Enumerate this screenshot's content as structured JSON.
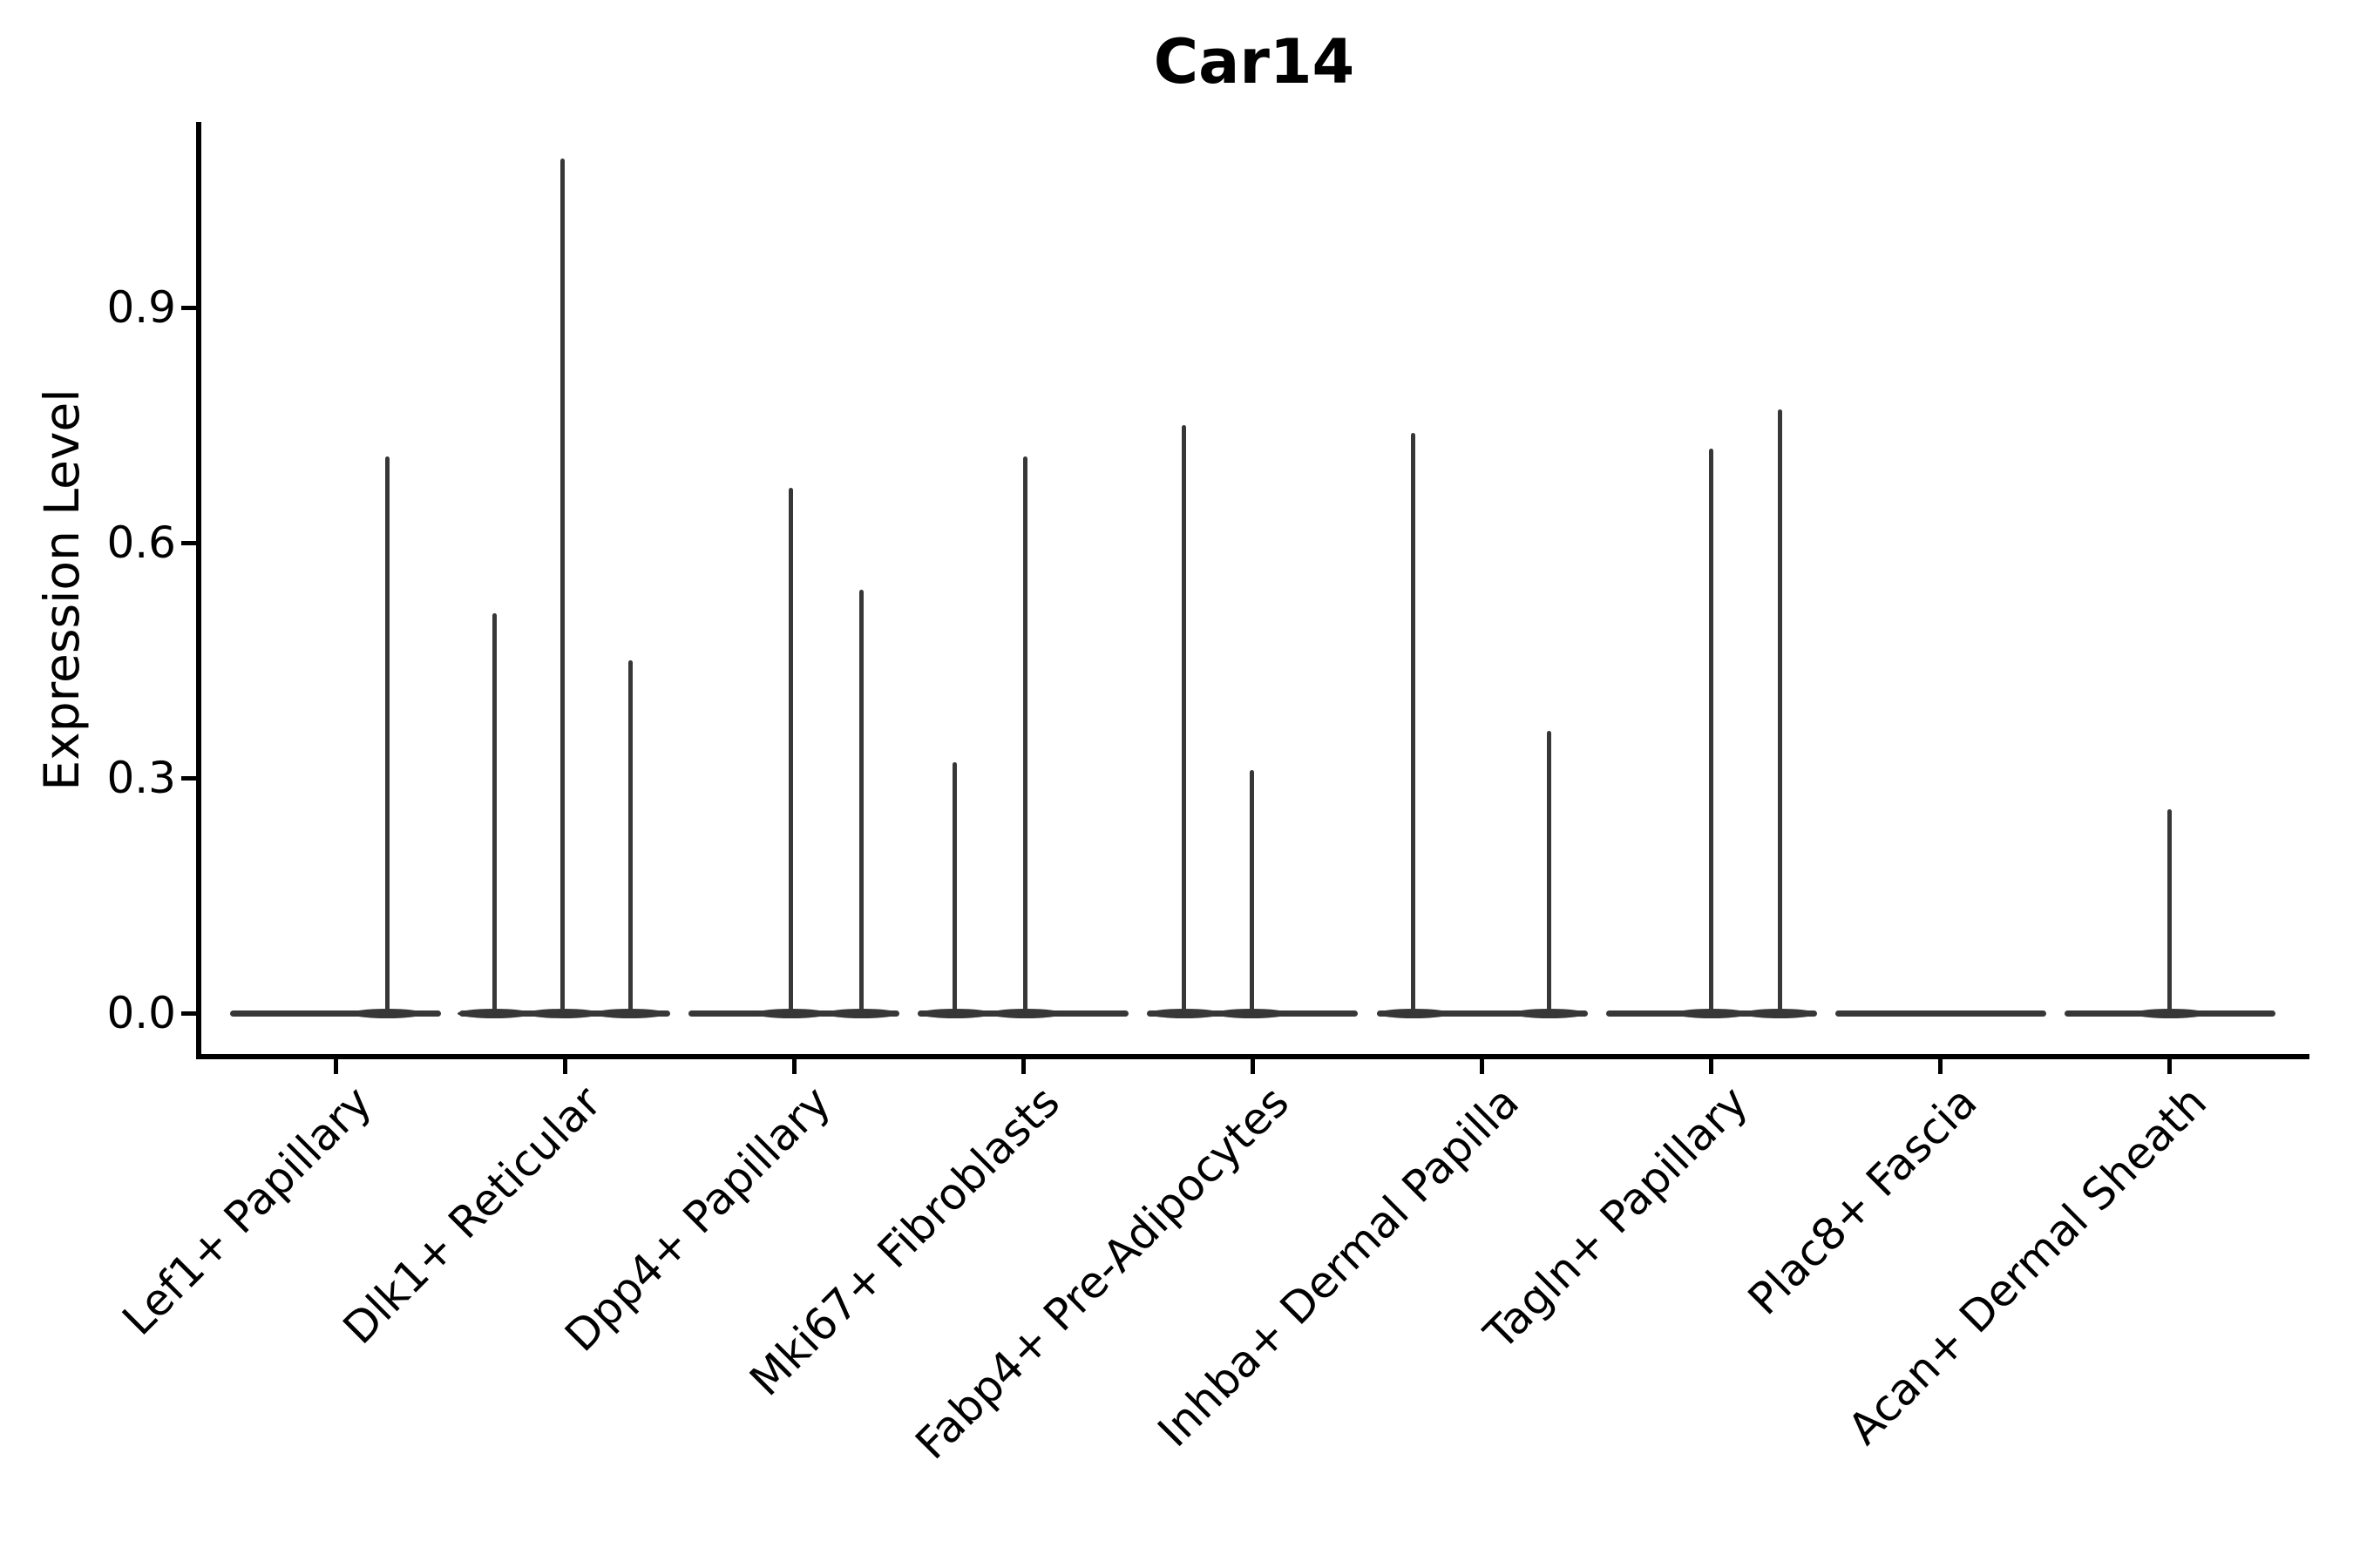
{
  "title": "Car14",
  "y_axis": {
    "label": "Expression Level",
    "tick_labels": [
      "0.0",
      "0.3",
      "0.6",
      "0.9"
    ],
    "tick_values": [
      0.0,
      0.3,
      0.6,
      0.9
    ]
  },
  "colors": {
    "violin": "#373737",
    "axis": "#000000",
    "text": "#000000",
    "background": "#ffffff"
  },
  "chart_data": {
    "type": "violin",
    "title": "Car14",
    "xlabel": "",
    "ylabel": "Expression Level",
    "ylim": [
      -0.055,
      1.137
    ],
    "yticks": [
      0.0,
      0.3,
      0.6,
      0.9
    ],
    "grid": false,
    "legend": "none",
    "x_label_rotation_deg": 45,
    "categories": [
      "Lef1+ Papillary",
      "Dlk1+ Reticular",
      "Dpp4+ Papillary",
      "Mki67+ Fibroblasts",
      "Fabp4+ Pre-Adipocytes",
      "Inhba+ Dermal Papilla",
      "Tagln+ Papillary",
      "Plac8+ Fascia",
      "Acan+ Dermal Sheath"
    ],
    "violins": [
      {
        "category": "Lef1+ Papillary",
        "baseline_value": 0.0,
        "spikes": [
          {
            "offset": 0.49,
            "value": 0.71
          }
        ]
      },
      {
        "category": "Dlk1+ Reticular",
        "baseline_value": 0.0,
        "spikes": [
          {
            "offset": -0.67,
            "value": 0.51
          },
          {
            "offset": -0.02,
            "value": 1.09
          },
          {
            "offset": 0.62,
            "value": 0.45
          }
        ]
      },
      {
        "category": "Dpp4+ Papillary",
        "baseline_value": 0.0,
        "spikes": [
          {
            "offset": -0.03,
            "value": 0.67
          },
          {
            "offset": 0.64,
            "value": 0.54
          }
        ]
      },
      {
        "category": "Mki67+ Fibroblasts",
        "baseline_value": 0.0,
        "spikes": [
          {
            "offset": -0.65,
            "value": 0.32
          },
          {
            "offset": 0.02,
            "value": 0.71
          }
        ]
      },
      {
        "category": "Fabp4+ Pre-Adipocytes",
        "baseline_value": 0.0,
        "spikes": [
          {
            "offset": -0.65,
            "value": 0.75
          },
          {
            "offset": -0.01,
            "value": 0.31
          }
        ]
      },
      {
        "category": "Inhba+ Dermal Papilla",
        "baseline_value": 0.0,
        "spikes": [
          {
            "offset": -0.65,
            "value": 0.74
          },
          {
            "offset": 0.64,
            "value": 0.36
          }
        ]
      },
      {
        "category": "Tagln+ Papillary",
        "baseline_value": 0.0,
        "spikes": [
          {
            "offset": 0.0,
            "value": 0.72
          },
          {
            "offset": 0.65,
            "value": 0.77
          }
        ]
      },
      {
        "category": "Plac8+ Fascia",
        "baseline_value": 0.0,
        "spikes": []
      },
      {
        "category": "Acan+ Dermal Sheath",
        "baseline_value": 0.0,
        "spikes": [
          {
            "offset": 0.0,
            "value": 0.26
          }
        ]
      }
    ],
    "notes": "Violins are collapsed to a flat lens at expression 0 with thin needle spikes reaching the max values; spike offset is the fraction of the violin half-width from the category center."
  }
}
